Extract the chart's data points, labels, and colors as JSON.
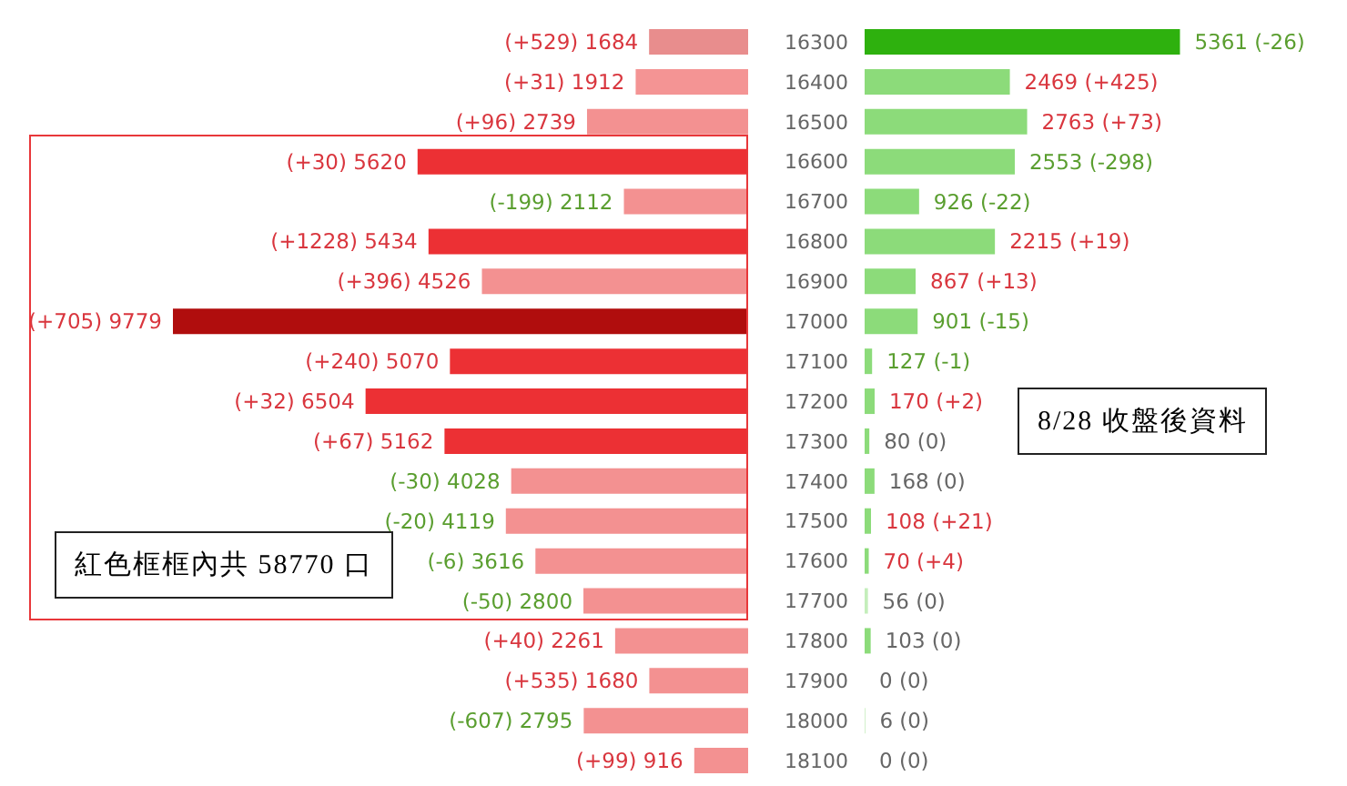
{
  "chart_data": [
    {
      "type": "bar",
      "orientation": "horizontal",
      "categories": [
        "16300",
        "16400",
        "16500",
        "16600",
        "16700",
        "16800",
        "16900",
        "17000",
        "17100",
        "17200",
        "17300",
        "17400",
        "17500",
        "17600",
        "17700",
        "17800",
        "17900",
        "18000",
        "18100"
      ],
      "values": [
        1684,
        1912,
        2739,
        5620,
        2112,
        5434,
        4526,
        9779,
        5070,
        6504,
        5162,
        4028,
        4119,
        3616,
        2800,
        2261,
        1680,
        2795,
        916
      ],
      "colors": [
        "#e88d8d",
        "#f49494",
        "#f39191",
        "#ec3034",
        "#f39191",
        "#ec3034",
        "#f39191",
        "#b00d0d",
        "#ec3034",
        "#ec3034",
        "#ec3034",
        "#f39191",
        "#f39191",
        "#f39191",
        "#f39191",
        "#f39191",
        "#f39191",
        "#f39191",
        "#f39191"
      ],
      "value_labels": [
        "(+529) 1684",
        "(+31) 1912",
        "(+96) 2739",
        "(+30) 5620",
        "(-199) 2112",
        "(+1228) 5434",
        "(+396) 4526",
        "(+705) 9779",
        "(+240) 5070",
        "(+32) 6504",
        "(+67) 5162",
        "(-30) 4028",
        "(-20) 4119",
        "(-6) 3616",
        "(-50) 2800",
        "(+40) 2261",
        "(+535) 1680",
        "(-607) 2795",
        "(+99) 916"
      ],
      "annotations": [
        "紅色框框內共 58770 口"
      ],
      "tick_labels": "y",
      "grid": false,
      "legend": false
    },
    {
      "type": "bar",
      "orientation": "horizontal",
      "categories": [
        "16300",
        "16400",
        "16500",
        "16600",
        "16700",
        "16800",
        "16900",
        "17000",
        "17100",
        "17200",
        "17300",
        "17400",
        "17500",
        "17600",
        "17700",
        "17800",
        "17900",
        "18000",
        "18100"
      ],
      "values": [
        5361,
        2469,
        2763,
        2553,
        926,
        2215,
        867,
        901,
        127,
        170,
        80,
        168,
        108,
        70,
        56,
        103,
        0,
        6,
        0
      ],
      "colors": [
        "#2eb10e",
        "#8cdb7a",
        "#8cdb7a",
        "#8cdb7a",
        "#8cdb7a",
        "#8cdb7a",
        "#8cdb7a",
        "#8cdb7a",
        "#8cdb7a",
        "#8cdb7a",
        "#8cdb7a",
        "#8cdb7a",
        "#8cdb7a",
        "#8cdb7a",
        "#c4eebb",
        "#8cdb7a",
        "#8cdb7a",
        "#8cdb7a",
        "#8cdb7a"
      ],
      "value_labels": [
        "5361 (-26)",
        "2469 (+425)",
        "2763 (+73)",
        "2553 (-298)",
        "926 (-22)",
        "2215 (+19)",
        "867 (+13)",
        "901 (-15)",
        "127 (-1)",
        "170 (+2)",
        "80 (0)",
        "168 (0)",
        "108 (+21)",
        "70 (+4)",
        "56 (0)",
        "103 (0)",
        "0 (0)",
        "6 (0)",
        "0 (0)"
      ],
      "annotations": [
        "8/28 收盤後資料"
      ],
      "tick_labels": false,
      "grid": false,
      "legend": false
    }
  ]
}
